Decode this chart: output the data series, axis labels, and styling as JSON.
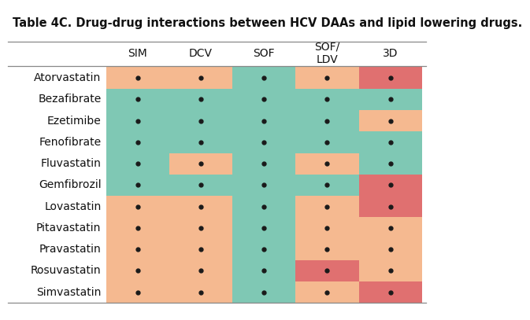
{
  "title": "Table 4C. Drug-drug interactions between HCV DAAs and lipid lowering drugs.",
  "columns": [
    "SIM",
    "DCV",
    "SOF",
    "SOF/\nLDV",
    "3D"
  ],
  "rows": [
    "Atorvastatin",
    "Bezafibrate",
    "Ezetimibe",
    "Fenofibrate",
    "Fluvastatin",
    "Gemfibrozil",
    "Lovastatin",
    "Pitavastatin",
    "Pravastatin",
    "Rosuvastatin",
    "Simvastatin"
  ],
  "colors": {
    "green": "#7FC8B4",
    "orange": "#F5B990",
    "red": "#E07070",
    "white": "#FFFFFF"
  },
  "cell_colors": [
    [
      "orange",
      "orange",
      "green",
      "orange",
      "red"
    ],
    [
      "green",
      "green",
      "green",
      "green",
      "green"
    ],
    [
      "green",
      "green",
      "green",
      "green",
      "orange"
    ],
    [
      "green",
      "green",
      "green",
      "green",
      "green"
    ],
    [
      "green",
      "orange",
      "green",
      "orange",
      "green"
    ],
    [
      "green",
      "green",
      "green",
      "green",
      "red"
    ],
    [
      "orange",
      "orange",
      "green",
      "orange",
      "red"
    ],
    [
      "orange",
      "orange",
      "green",
      "orange",
      "orange"
    ],
    [
      "orange",
      "orange",
      "green",
      "orange",
      "orange"
    ],
    [
      "orange",
      "orange",
      "green",
      "red",
      "orange"
    ],
    [
      "orange",
      "orange",
      "green",
      "orange",
      "red"
    ]
  ],
  "dot_color": "#1a1a1a",
  "bg_color": "#FFFFFF",
  "title_fontsize": 10.5,
  "col_fontsize": 10,
  "row_fontsize": 10
}
